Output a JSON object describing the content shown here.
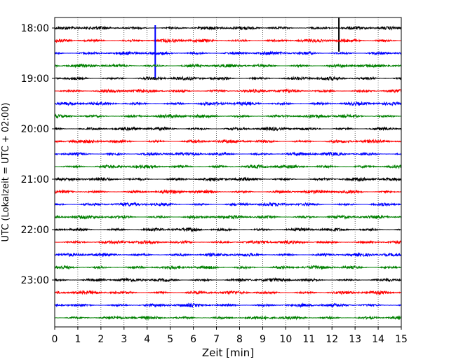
{
  "chart_data": {
    "type": "line",
    "title": "",
    "xlabel": "Zeit  [min]",
    "ylabel": "UTC (Lokalzeit = UTC + 02:00)",
    "xlim": [
      0,
      15
    ],
    "x_ticks": [
      0,
      1,
      2,
      3,
      4,
      5,
      6,
      7,
      8,
      9,
      10,
      11,
      12,
      13,
      14,
      15
    ],
    "x_tick_labels": [
      "0",
      "1",
      "2",
      "3",
      "4",
      "5",
      "6",
      "7",
      "8",
      "9",
      "10",
      "11",
      "12",
      "13",
      "14",
      "15"
    ],
    "y_tick_labels": [
      "18:00",
      "19:00",
      "20:00",
      "21:00",
      "22:00",
      "23:00"
    ],
    "grid": "vertical dotted lines at each minute",
    "traces": [
      {
        "start": "18:00",
        "color": "#000000"
      },
      {
        "start": "18:15",
        "color": "#ff0000"
      },
      {
        "start": "18:30",
        "color": "#0000ff"
      },
      {
        "start": "18:45",
        "color": "#008000"
      },
      {
        "start": "19:00",
        "color": "#000000"
      },
      {
        "start": "19:15",
        "color": "#ff0000"
      },
      {
        "start": "19:30",
        "color": "#0000ff"
      },
      {
        "start": "19:45",
        "color": "#008000"
      },
      {
        "start": "20:00",
        "color": "#000000"
      },
      {
        "start": "20:15",
        "color": "#ff0000"
      },
      {
        "start": "20:30",
        "color": "#0000ff"
      },
      {
        "start": "20:45",
        "color": "#008000"
      },
      {
        "start": "21:00",
        "color": "#000000"
      },
      {
        "start": "21:15",
        "color": "#ff0000"
      },
      {
        "start": "21:30",
        "color": "#0000ff"
      },
      {
        "start": "21:45",
        "color": "#008000"
      },
      {
        "start": "22:00",
        "color": "#000000"
      },
      {
        "start": "22:15",
        "color": "#ff0000"
      },
      {
        "start": "22:30",
        "color": "#0000ff"
      },
      {
        "start": "22:45",
        "color": "#008000"
      },
      {
        "start": "23:00",
        "color": "#000000"
      },
      {
        "start": "23:15",
        "color": "#ff0000"
      },
      {
        "start": "23:30",
        "color": "#0000ff"
      },
      {
        "start": "23:45",
        "color": "#008000"
      }
    ],
    "events": [
      {
        "start": "18:00",
        "x_min": 12.3
      },
      {
        "start": "18:30",
        "x_min": 4.35
      }
    ]
  }
}
